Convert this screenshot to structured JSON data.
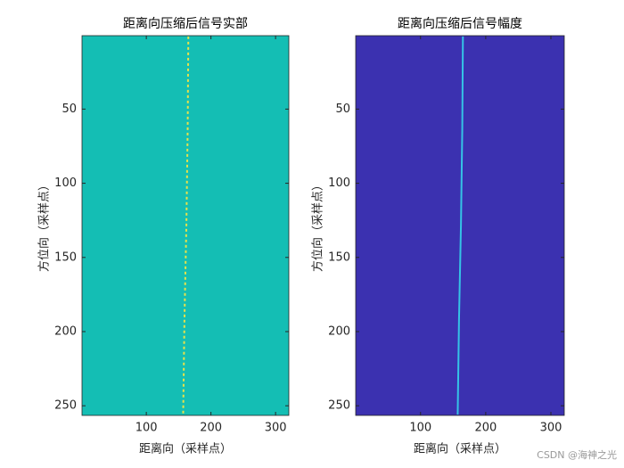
{
  "chart_data": [
    {
      "type": "image",
      "title": "距离向压缩后信号实部",
      "xlabel": "距离向（采样点）",
      "ylabel": "方位向（采样点）",
      "xlim": [
        0.5,
        320.5
      ],
      "ylim": [
        0.5,
        256.5
      ],
      "y_reversed": true,
      "xticks": [
        100,
        200,
        300
      ],
      "yticks": [
        50,
        100,
        150,
        200,
        250
      ],
      "background": "#14beb4",
      "trace": {
        "x": [
          165,
          164,
          162,
          159,
          157
        ],
        "y": [
          1,
          64,
          128,
          192,
          256
        ],
        "color": "#e8e24a"
      }
    },
    {
      "type": "image",
      "title": "距离向压缩后信号幅度",
      "xlabel": "距离向（采样点）",
      "ylabel": "方位向（采样点）",
      "xlim": [
        0.5,
        320.5
      ],
      "ylim": [
        0.5,
        256.5
      ],
      "y_reversed": true,
      "xticks": [
        100,
        200,
        300
      ],
      "yticks": [
        50,
        100,
        150,
        200,
        250
      ],
      "background": "#3b31b0",
      "trace": {
        "x": [
          165,
          164,
          162,
          159,
          157
        ],
        "y": [
          1,
          64,
          128,
          192,
          256
        ],
        "color": "#35c3e6"
      }
    }
  ],
  "watermark": "CSDN @海神之光"
}
